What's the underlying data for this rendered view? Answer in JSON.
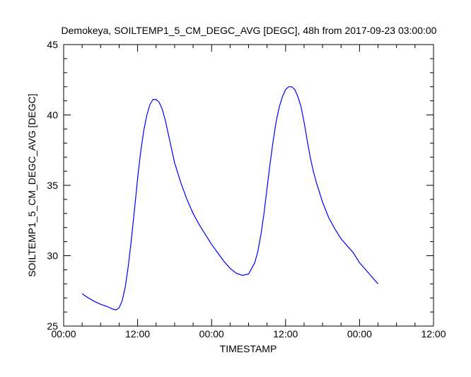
{
  "chart_data": {
    "type": "line",
    "title": "Demokeya, SOILTEMP1_5_CM_DEGC_AVG [DEGC], 48h from  2017-09-23 03:00:00",
    "xlabel": "TIMESTAMP",
    "ylabel": "SOILTEMP1_5_CM_DEGC_AVG [DEGC]",
    "x_ticks": [
      "00:00",
      "12:00",
      "00:00",
      "12:00",
      "00:00",
      "12:00"
    ],
    "x_tick_hours": [
      0,
      12,
      24,
      36,
      48,
      60
    ],
    "xlim_hours": [
      0,
      60
    ],
    "ylim": [
      25,
      45
    ],
    "y_ticks": [
      25,
      30,
      35,
      40,
      45
    ],
    "grid": false,
    "line_color": "#0000ff",
    "series": [
      {
        "x_hours": [
          3,
          4,
          5,
          6,
          7,
          8,
          8.5,
          9,
          9.5,
          10,
          10.5,
          11,
          11.5,
          12,
          12.5,
          13,
          13.5,
          14,
          14.5,
          15,
          15.5,
          16,
          16.5,
          17,
          17.5,
          18,
          19,
          20,
          21,
          22,
          23,
          24,
          25,
          26,
          27,
          28,
          29,
          30,
          31,
          31.5,
          32,
          32.5,
          33,
          33.5,
          34,
          34.5,
          35,
          35.5,
          36,
          36.5,
          37,
          37.5,
          38,
          38.5,
          39,
          39.5,
          40,
          40.5,
          41,
          41.5,
          42,
          43,
          44,
          45,
          46,
          47,
          48,
          49,
          50,
          51
        ],
        "y": [
          27.3,
          27.0,
          26.75,
          26.55,
          26.4,
          26.2,
          26.15,
          26.3,
          26.8,
          27.8,
          29.3,
          31.2,
          33.3,
          35.5,
          37.4,
          38.9,
          40.0,
          40.75,
          41.1,
          41.1,
          40.9,
          40.4,
          39.6,
          38.6,
          37.6,
          36.6,
          35.2,
          34.0,
          33.0,
          32.2,
          31.5,
          30.8,
          30.2,
          29.6,
          29.1,
          28.75,
          28.6,
          28.7,
          29.5,
          30.3,
          31.5,
          33.0,
          34.8,
          36.6,
          38.2,
          39.6,
          40.6,
          41.3,
          41.8,
          42.0,
          42.0,
          41.8,
          41.3,
          40.6,
          39.5,
          38.2,
          37.0,
          36.0,
          35.2,
          34.5,
          33.8,
          32.7,
          31.9,
          31.2,
          30.7,
          30.2,
          29.5,
          29.0,
          28.5,
          28.0
        ]
      }
    ]
  }
}
